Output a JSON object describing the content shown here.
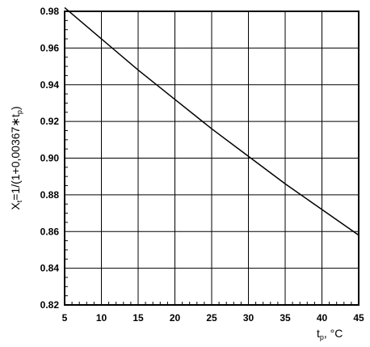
{
  "chart_data": {
    "type": "line",
    "title": "",
    "xlabel": {
      "main": "t",
      "sub": "p",
      "unit": ", °C"
    },
    "ylabel": {
      "prefix": "X",
      "prefix_sub": "t",
      "mid": "=1/(1+0,00367∗t",
      "mid_sub": "p",
      "suffix": ")"
    },
    "xlim": [
      5,
      45
    ],
    "ylim": [
      0.82,
      0.98
    ],
    "xticks": [
      "5",
      "10",
      "15",
      "20",
      "25",
      "30",
      "35",
      "40",
      "45"
    ],
    "yticks": [
      "0.82",
      "0.84",
      "0.86",
      "0.88",
      "0.90",
      "0.92",
      "0.94",
      "0.96",
      "0.98"
    ],
    "grid": true,
    "series": [
      {
        "x": [
          5,
          10,
          15,
          20,
          25,
          30,
          35,
          40,
          45
        ],
        "y": [
          0.982,
          0.965,
          0.948,
          0.932,
          0.916,
          0.901,
          0.886,
          0.872,
          0.858
        ]
      }
    ],
    "colors": {
      "line": "#000000",
      "grid": "#000000",
      "background": "#ffffff"
    }
  }
}
